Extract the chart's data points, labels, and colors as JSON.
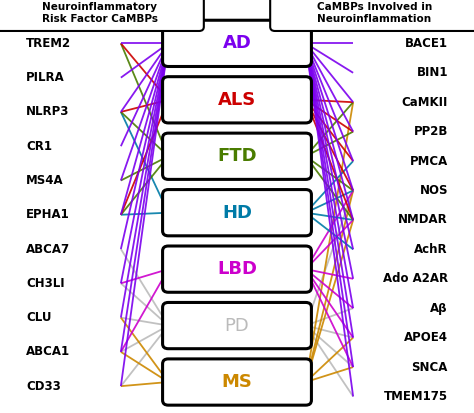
{
  "left_title": "Neuroinflammatory\nRisk Factor CaMBPs",
  "right_title": "CaMBPs Involved in\nNeuroinflammation",
  "left_nodes": [
    "TREM2",
    "PILRA",
    "NLRP3",
    "CR1",
    "MS4A",
    "EPHA1",
    "ABCA7",
    "CH3LI",
    "CLU",
    "ABCA1",
    "CD33"
  ],
  "right_nodes": [
    "BACE1",
    "BIN1",
    "CaMKII",
    "PP2B",
    "PMCA",
    "NOS",
    "NMDAR",
    "AchR",
    "Ado A2AR",
    "Aβ",
    "APOE4",
    "SNCA",
    "TMEM175"
  ],
  "diseases": [
    "AD",
    "ALS",
    "FTD",
    "HD",
    "LBD",
    "PD",
    "MS"
  ],
  "disease_colors": {
    "AD": "#7B00EE",
    "ALS": "#CC0000",
    "FTD": "#4A7C00",
    "HD": "#007BA7",
    "LBD": "#CC00CC",
    "PD": "#BBBBBB",
    "MS": "#CC8800"
  },
  "connections_left": {
    "AD": [
      "TREM2",
      "PILRA",
      "NLRP3",
      "CR1",
      "MS4A",
      "EPHA1",
      "ABCA7",
      "CH3LI",
      "CLU",
      "ABCA1",
      "CD33"
    ],
    "ALS": [
      "TREM2",
      "NLRP3",
      "EPHA1"
    ],
    "FTD": [
      "TREM2",
      "NLRP3",
      "MS4A",
      "EPHA1"
    ],
    "HD": [
      "NLRP3",
      "EPHA1"
    ],
    "LBD": [
      "CH3LI",
      "ABCA1"
    ],
    "PD": [
      "ABCA7",
      "CH3LI",
      "CLU",
      "ABCA1",
      "CD33"
    ],
    "MS": [
      "CLU",
      "ABCA1",
      "CD33"
    ]
  },
  "connections_right": {
    "AD": [
      "BACE1",
      "BIN1",
      "CaMKII",
      "PP2B",
      "PMCA",
      "NOS",
      "NMDAR",
      "AchR",
      "Ado A2AR",
      "Aβ",
      "APOE4",
      "SNCA",
      "TMEM175"
    ],
    "ALS": [
      "CaMKII",
      "PP2B",
      "PMCA",
      "NOS",
      "NMDAR"
    ],
    "FTD": [
      "CaMKII",
      "PP2B",
      "NOS",
      "NMDAR"
    ],
    "HD": [
      "PMCA",
      "NOS",
      "NMDAR",
      "AchR"
    ],
    "LBD": [
      "NOS",
      "NMDAR",
      "Ado A2AR",
      "Aβ",
      "APOE4",
      "SNCA"
    ],
    "PD": [
      "Aβ",
      "NOS",
      "APOE4",
      "SNCA",
      "TMEM175"
    ],
    "MS": [
      "CaMKII",
      "NOS",
      "NMDAR",
      "APOE4",
      "SNCA"
    ]
  },
  "bg_color": "#FFFFFF"
}
